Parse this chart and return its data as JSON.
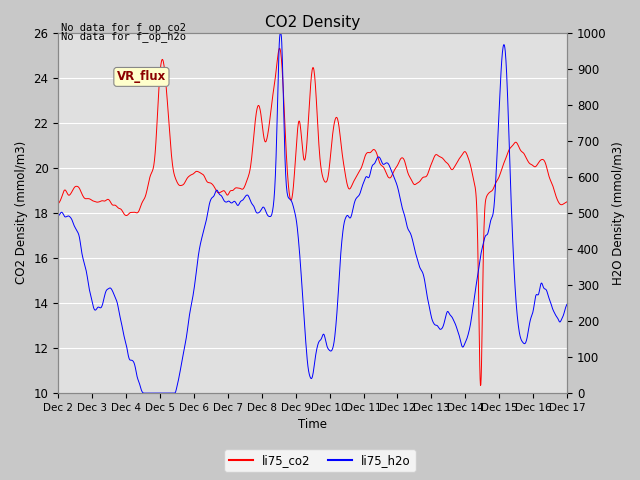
{
  "title": "CO2 Density",
  "xlabel": "Time",
  "ylabel_left": "CO2 Density (mmol/m3)",
  "ylabel_right": "H2O Density (mmol/m3)",
  "top_left_text_1": "No data for f_op_co2",
  "top_left_text_2": "No data for f_op_h2o",
  "vr_flux_label": "VR_flux",
  "legend_co2": "li75_co2",
  "legend_h2o": "li75_h2o",
  "color_co2": "#ff0000",
  "color_h2o": "#0000ff",
  "ylim_left": [
    10,
    26
  ],
  "ylim_right": [
    0,
    1000
  ],
  "bg_color": "#c8c8c8",
  "plot_bg_color": "#e0e0e0",
  "grid_color": "#ffffff",
  "n_points": 1440
}
